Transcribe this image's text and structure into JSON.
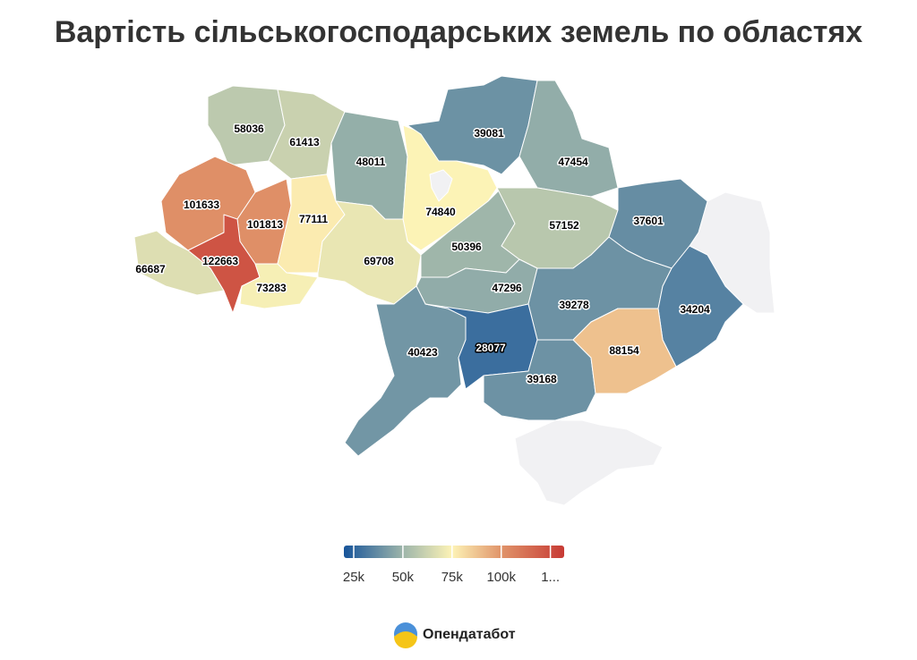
{
  "title": "Вартість сільськогосподарських земель по областях",
  "footer": "Опендатабот",
  "chart_data": {
    "type": "choropleth",
    "values": [
      58036,
      61413,
      48011,
      74840,
      39081,
      47454,
      101633,
      101813,
      77111,
      66687,
      122663,
      73283,
      69708,
      50396,
      57152,
      37601,
      47296,
      39278,
      34204,
      40423,
      28077,
      39168,
      88154
    ],
    "color_scale": [
      {
        "value": 20000,
        "color": "#17549a"
      },
      {
        "value": 50000,
        "color": "#9db5aa"
      },
      {
        "value": 75000,
        "color": "#fdf3b6"
      },
      {
        "value": 100000,
        "color": "#e0946a"
      },
      {
        "value": 132000,
        "color": "#c73a34"
      }
    ],
    "no_data_color": "#f1f1f3",
    "legend_range": [
      20000,
      132000
    ],
    "legend_ticks": [
      {
        "value": 25000,
        "label": "25k"
      },
      {
        "value": 50000,
        "label": "50k"
      },
      {
        "value": 75000,
        "label": "75k"
      },
      {
        "value": 100000,
        "label": "100k"
      },
      {
        "value": 125000,
        "label": "1..."
      }
    ]
  }
}
